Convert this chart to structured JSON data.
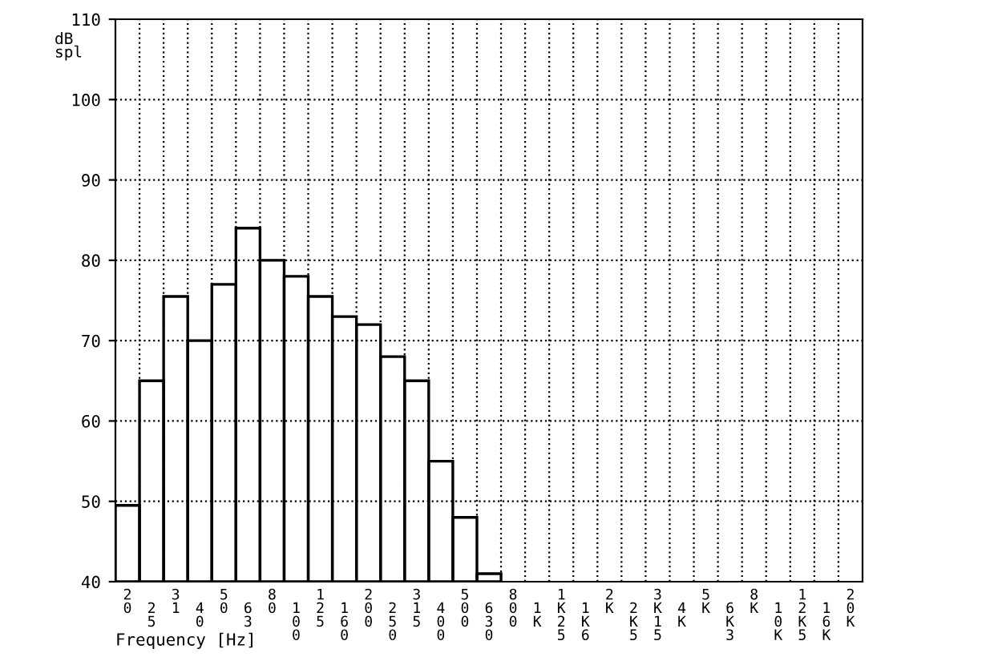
{
  "chart_data": {
    "type": "bar",
    "xlabel": "Frequency [Hz]",
    "ylabel": "dB spl",
    "categories": [
      "20",
      "25",
      "31",
      "40",
      "50",
      "63",
      "80",
      "100",
      "125",
      "160",
      "200",
      "250",
      "315",
      "400",
      "500",
      "630",
      "800",
      "1K",
      "1K25",
      "1K6",
      "2K",
      "2K5",
      "3K15",
      "4K",
      "5K",
      "6K3",
      "8K",
      "10K",
      "12K5",
      "16K",
      "20K"
    ],
    "values": [
      49.5,
      65,
      75.5,
      70,
      77,
      84,
      80,
      78,
      75.5,
      73,
      72,
      68,
      65,
      55,
      48,
      41,
      null,
      null,
      null,
      null,
      null,
      null,
      null,
      null,
      null,
      null,
      null,
      null,
      null,
      null,
      null
    ],
    "color": "#000000",
    "ylim": [
      40,
      110
    ],
    "yticks": [
      40,
      50,
      60,
      70,
      80,
      90,
      100,
      110
    ],
    "grid": true,
    "line_style": "dotted"
  }
}
